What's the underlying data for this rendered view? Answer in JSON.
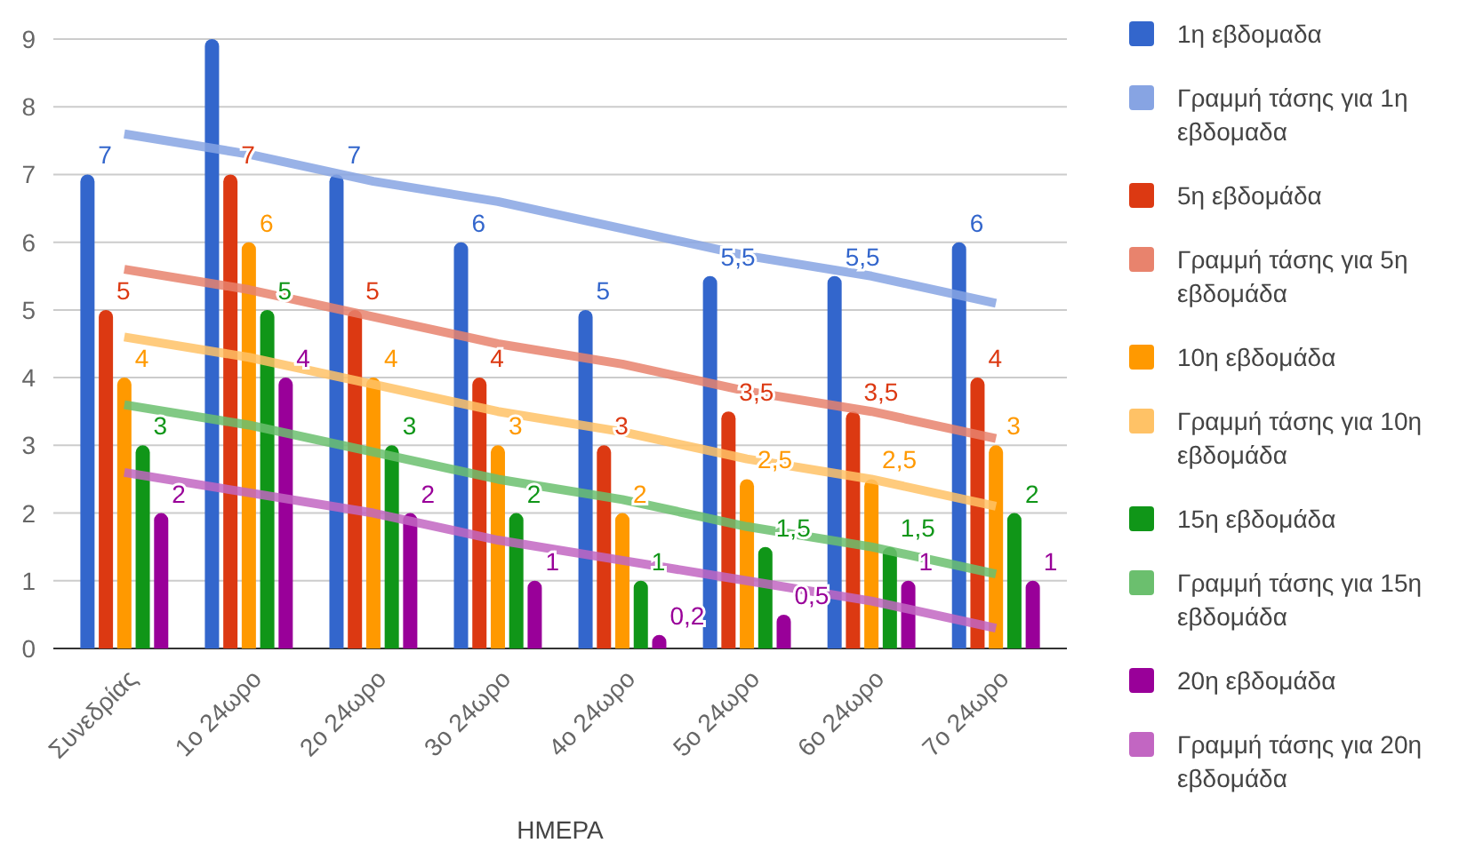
{
  "chart_data": {
    "type": "bar",
    "xlabel": "ΗΜΕΡΑ",
    "categories": [
      "Συνεδρίας",
      "1ο 24ωρο",
      "2ο 24ωρο",
      "3ο 24ωρο",
      "4ο 24ωρο",
      "5ο 24ωρο",
      "6ο 24ωρο",
      "7ο 24ωρο"
    ],
    "ylim": [
      0,
      9
    ],
    "yticks": [
      0,
      1,
      2,
      3,
      4,
      5,
      6,
      7,
      8,
      9
    ],
    "grid": "y",
    "legend": "right",
    "series": [
      {
        "name": "1η εβδομαδα",
        "color": "#3366cc",
        "values": [
          7,
          9,
          7,
          6,
          5,
          5.5,
          5.5,
          6
        ],
        "value_labels": [
          "7",
          null,
          "7",
          "6",
          "5",
          "5,5",
          "5,5",
          "6"
        ]
      },
      {
        "name": "Γραμμή τάσης για 1η εβδομαδα",
        "type": "line",
        "color": "#87a4e3",
        "values": [
          7.6,
          7.3,
          6.9,
          6.6,
          6.2,
          5.8,
          5.5,
          5.1
        ]
      },
      {
        "name": "5η εβδομάδα",
        "color": "#dc3912",
        "values": [
          5,
          7,
          5,
          4,
          3,
          3.5,
          3.5,
          4
        ],
        "value_labels": [
          "5",
          "7",
          "5",
          "4",
          "3",
          "3,5",
          "3,5",
          "4"
        ]
      },
      {
        "name": "Γραμμή τάσης για 5η εβδομάδα",
        "type": "line",
        "color": "#e8836d",
        "values": [
          5.6,
          5.3,
          4.9,
          4.5,
          4.2,
          3.8,
          3.5,
          3.1
        ]
      },
      {
        "name": "10η εβδομάδα",
        "color": "#ff9900",
        "values": [
          4,
          6,
          4,
          3,
          2,
          2.5,
          2.5,
          3
        ],
        "value_labels": [
          "4",
          "6",
          "4",
          "3",
          "2",
          "2,5",
          "2,5",
          "3"
        ]
      },
      {
        "name": "Γραμμή τάσης για 10η εβδομάδα",
        "type": "line",
        "color": "#ffc266",
        "values": [
          4.6,
          4.3,
          3.9,
          3.5,
          3.2,
          2.8,
          2.5,
          2.1
        ]
      },
      {
        "name": "15η εβδομάδα",
        "color": "#109618",
        "values": [
          3,
          5,
          3,
          2,
          1,
          1.5,
          1.5,
          2
        ],
        "value_labels": [
          "3",
          "5",
          "3",
          "2",
          "1",
          "1,5",
          "1,5",
          "2"
        ]
      },
      {
        "name": "Γραμμή τάσης για 15η εβδομάδα",
        "type": "line",
        "color": "#6bbf6e",
        "values": [
          3.6,
          3.3,
          2.9,
          2.5,
          2.2,
          1.8,
          1.5,
          1.1
        ]
      },
      {
        "name": "20η εβδομάδα",
        "color": "#990099",
        "values": [
          2,
          4,
          2,
          1,
          0.2,
          0.5,
          1,
          1
        ],
        "value_labels": [
          "2",
          "4",
          "2",
          "1",
          "0,2",
          "0,5",
          "1",
          "1"
        ]
      },
      {
        "name": "Γραμμή τάσης για 20η εβδομάδα",
        "type": "line",
        "color": "#c266c2",
        "values": [
          2.6,
          2.3,
          2.0,
          1.6,
          1.3,
          1.0,
          0.7,
          0.3
        ]
      }
    ]
  }
}
